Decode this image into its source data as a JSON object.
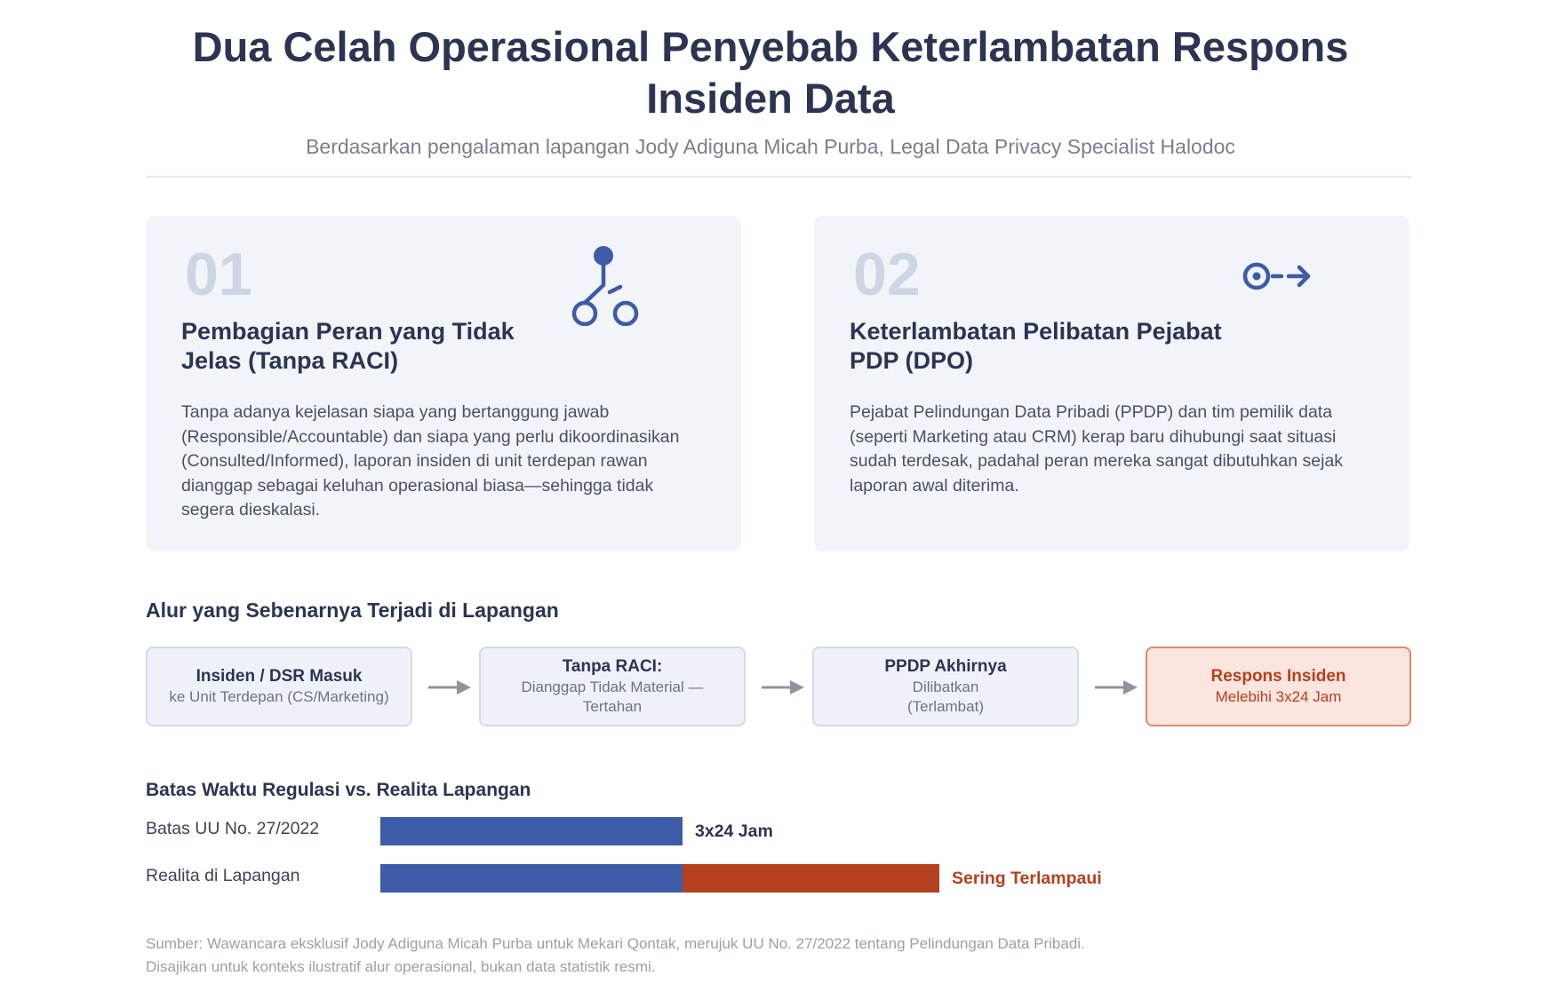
{
  "header": {
    "title": "Dua Celah Operasional Penyebab Keterlambatan Respons Insiden Data",
    "subtitle": "Berdasarkan pengalaman lapangan Jody Adiguna Micah Purba, Legal Data Privacy Specialist Halodoc"
  },
  "cards": [
    {
      "number": "01",
      "icon": "branch-icon",
      "title": "Pembagian Peran yang Tidak Jelas (Tanpa RACI)",
      "body": "Tanpa adanya kejelasan siapa yang bertanggung jawab (Responsible/Accountable) dan siapa yang perlu dikoordinasikan (Consulted/Informed), laporan insiden di unit terdepan rawan dianggap sebagai keluhan operasional biasa—sehingga tidak segera dieskalasi."
    },
    {
      "number": "02",
      "icon": "delayed-arrow-icon",
      "title": "Keterlambatan Pelibatan Pejabat PDP (DPO)",
      "body": "Pejabat Pelindungan Data Pribadi (PPDP) dan tim pemilik data (seperti Marketing atau CRM) kerap baru dihubungi saat situasi sudah terdesak, padahal peran mereka sangat dibutuhkan sejak laporan awal diterima."
    }
  ],
  "flow": {
    "title": "Alur yang Sebenarnya Terjadi di Lapangan",
    "steps": [
      {
        "head": "Insiden / DSR Masuk",
        "sub": "ke Unit Terdepan (CS/Marketing)"
      },
      {
        "head": "Tanpa RACI:",
        "sub": "Dianggap Tidak Material — Tertahan"
      },
      {
        "head": "PPDP Akhirnya",
        "sub": "Dilibatkan (Terlambat)"
      },
      {
        "head": "Respons Insiden",
        "sub": "Melebihi 3x24 Jam"
      }
    ]
  },
  "comparison": {
    "title": "Batas Waktu Regulasi vs. Realita Lapangan",
    "rows": [
      {
        "label": "Batas UU No. 27/2022",
        "note": "3x24 Jam",
        "base_fraction": 1.0,
        "excess_fraction": 0.0
      },
      {
        "label": "Realita di Lapangan",
        "note": "Sering Terlampaui",
        "base_fraction": 1.0,
        "excess_fraction": 0.85
      }
    ],
    "colors": {
      "base": "#3d5ba6",
      "excess": "#b5401f",
      "note_default": "#2c3452",
      "note_alert": "#b4401e"
    }
  },
  "source": {
    "line1": "Sumber: Wawancara eksklusif Jody Adiguna Micah Purba untuk Mekari Qontak, merujuk UU No. 27/2022 tentang Pelindungan Data Pribadi.",
    "line2": "Disajikan untuk konteks ilustratif alur operasional, bukan data statistik resmi."
  }
}
